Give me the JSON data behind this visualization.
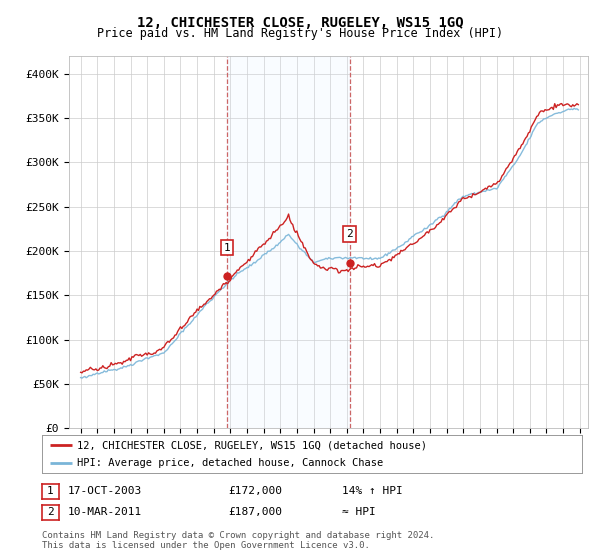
{
  "title": "12, CHICHESTER CLOSE, RUGELEY, WS15 1GQ",
  "subtitle": "Price paid vs. HM Land Registry's House Price Index (HPI)",
  "legend_line1": "12, CHICHESTER CLOSE, RUGELEY, WS15 1GQ (detached house)",
  "legend_line2": "HPI: Average price, detached house, Cannock Chase",
  "annotation1_label": "1",
  "annotation1_date": "17-OCT-2003",
  "annotation1_price": "£172,000",
  "annotation1_hpi": "14% ↑ HPI",
  "annotation2_label": "2",
  "annotation2_date": "10-MAR-2011",
  "annotation2_price": "£187,000",
  "annotation2_hpi": "≈ HPI",
  "footer": "Contains HM Land Registry data © Crown copyright and database right 2024.\nThis data is licensed under the Open Government Licence v3.0.",
  "hpi_color": "#7ab5d8",
  "price_color": "#cc2222",
  "marker_color": "#cc2222",
  "vline_color": "#cc6666",
  "fill_color": "#ddeeff",
  "annotation_box_color": "#cc2222",
  "ylim": [
    0,
    420000
  ],
  "yticks": [
    0,
    50000,
    100000,
    150000,
    200000,
    250000,
    300000,
    350000,
    400000
  ],
  "ytick_labels": [
    "£0",
    "£50K",
    "£100K",
    "£150K",
    "£200K",
    "£250K",
    "£300K",
    "£350K",
    "£400K"
  ],
  "background_color": "#ffffff",
  "plot_bg_color": "#ffffff",
  "grid_color": "#cccccc",
  "sale1_time": 2003.79,
  "sale1_price": 172000,
  "sale2_time": 2011.17,
  "sale2_price": 187000
}
